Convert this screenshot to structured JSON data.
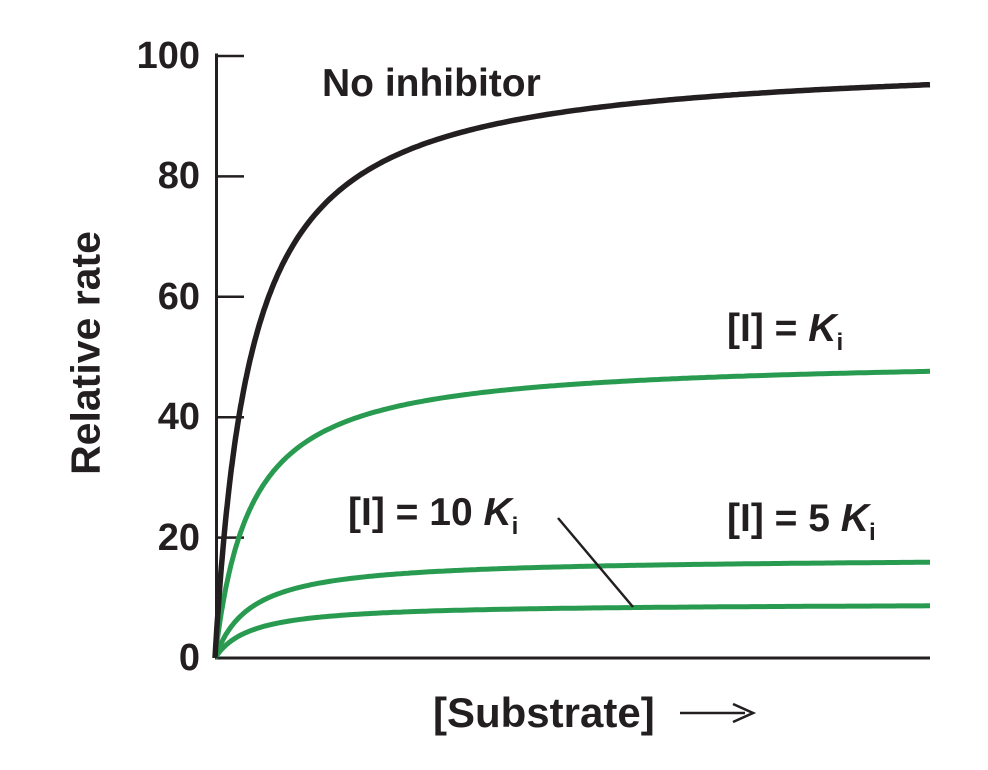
{
  "chart_data": {
    "type": "line",
    "title": "",
    "xlabel": "[Substrate]",
    "ylabel": "Relative rate",
    "x_axis": {
      "range": [
        0,
        20
      ],
      "unit": "arbitrary (no tick labels)",
      "tick_labels": [],
      "arrow": true
    },
    "y_axis": {
      "range": [
        0,
        100
      ],
      "ticks": [
        0,
        20,
        40,
        60,
        80,
        100
      ]
    },
    "model": "michaelis-menten: v = vmax * S / (S + km)",
    "km": 1,
    "series": [
      {
        "name": "No inhibitor",
        "vmax": 100,
        "value_at_right_edge": 95,
        "color": "#231f20",
        "width": 5.5
      },
      {
        "name": "[I] = Ki",
        "vmax": 50,
        "value_at_right_edge": 48,
        "color": "#289b50",
        "width": 5
      },
      {
        "name": "[I] = 5 Ki",
        "vmax": 16.7,
        "value_at_right_edge": 16,
        "color": "#289b50",
        "width": 5
      },
      {
        "name": "[I] = 10 Ki",
        "vmax": 9.1,
        "value_at_right_edge": 9,
        "color": "#289b50",
        "width": 5
      }
    ],
    "legend_position": "annotations-on-plot",
    "grid": false,
    "axis_color": "#231f20",
    "background": "#ffffff"
  },
  "annotations": {
    "no_inhibitor": {
      "text": "No inhibitor"
    },
    "ki": {
      "prefix": "[I] = ",
      "symbol": "K",
      "subscript": "i"
    },
    "ki10": {
      "prefix": "[I] = 10 ",
      "symbol": "K",
      "subscript": "i"
    },
    "ki5": {
      "prefix": "[I] = 5 ",
      "symbol": "K",
      "subscript": "i"
    }
  }
}
